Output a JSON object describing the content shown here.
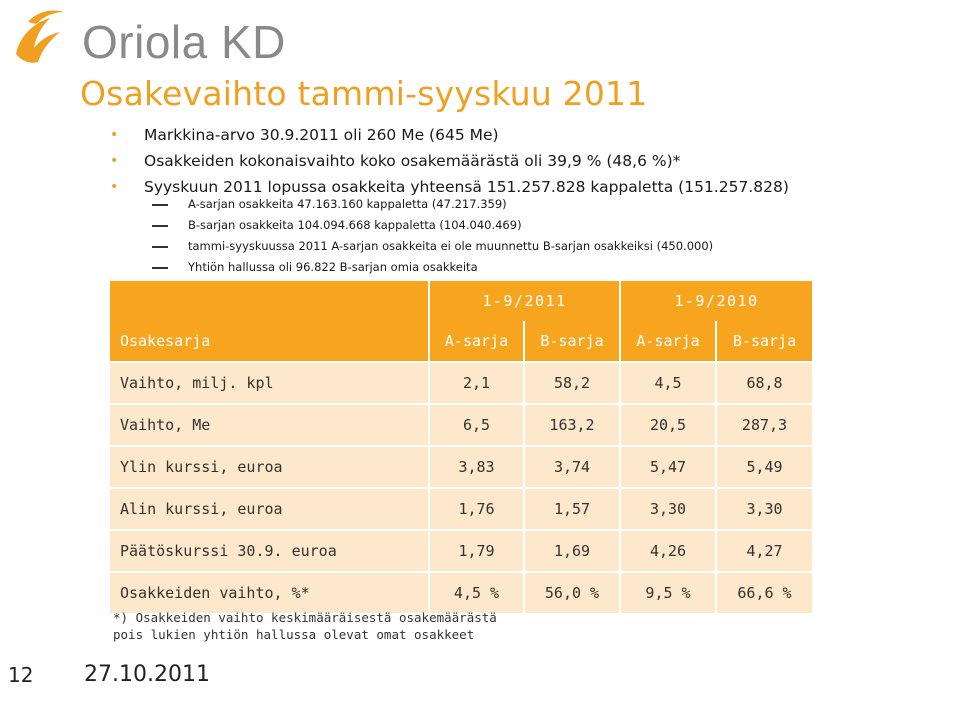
{
  "logo": {
    "text": "Oriola KD",
    "mark_color": "#f0a020",
    "text_color": "#8a8a8a"
  },
  "title": "Osakevaihto tammi-syyskuu 2011",
  "bullets": [
    "Markkina-arvo 30.9.2011 oli 260 Me (645 Me)",
    "Osakkeiden kokonaisvaihto koko osakemäärästä oli 39,9 % (48,6 %)*",
    "Syyskuun 2011 lopussa osakkeita yhteensä 151.257.828 kappaletta (151.257.828)"
  ],
  "sub_bullets": [
    "A-sarjan osakkeita 47.163.160 kappaletta (47.217.359)",
    "B-sarjan osakkeita 104.094.668 kappaletta (104.040.469)",
    "tammi-syyskuussa 2011 A-sarjan osakkeita ei ole muunnettu B-sarjan osakkeiksi (450.000)",
    "Yhtiön hallussa oli 96.822 B-sarjan omia osakkeita"
  ],
  "table": {
    "period_headers": [
      "1-9/2011",
      "1-9/2010"
    ],
    "column_header_label": "Osakesarja",
    "columns": [
      "A-sarja",
      "B-sarja",
      "A-sarja",
      "B-sarja"
    ],
    "rows": [
      {
        "label": "Vaihto, milj. kpl",
        "values": [
          "2,1",
          "58,2",
          "4,5",
          "68,8"
        ]
      },
      {
        "label": "Vaihto, Me",
        "values": [
          "6,5",
          "163,2",
          "20,5",
          "287,3"
        ]
      },
      {
        "label": "Ylin kurssi, euroa",
        "values": [
          "3,83",
          "3,74",
          "5,47",
          "5,49"
        ]
      },
      {
        "label": "Alin kurssi, euroa",
        "values": [
          "1,76",
          "1,57",
          "3,30",
          "3,30"
        ]
      },
      {
        "label": "Päätöskurssi 30.9. euroa",
        "values": [
          "1,79",
          "1,69",
          "4,26",
          "4,27"
        ]
      },
      {
        "label": "Osakkeiden vaihto, %*",
        "values": [
          "4,5 %",
          "56,0 %",
          "9,5 %",
          "66,6 %"
        ]
      }
    ]
  },
  "footnote": {
    "line1": "*) Osakkeiden vaihto keskimääräisestä osakemäärästä",
    "line2": "pois lukien yhtiön hallussa olevat omat osakkeet"
  },
  "page_number": "12",
  "date": "27.10.2011",
  "colors": {
    "accent": "#f0a020",
    "header_fill": "#f7a51e",
    "row_fill": "#fde8cc"
  }
}
